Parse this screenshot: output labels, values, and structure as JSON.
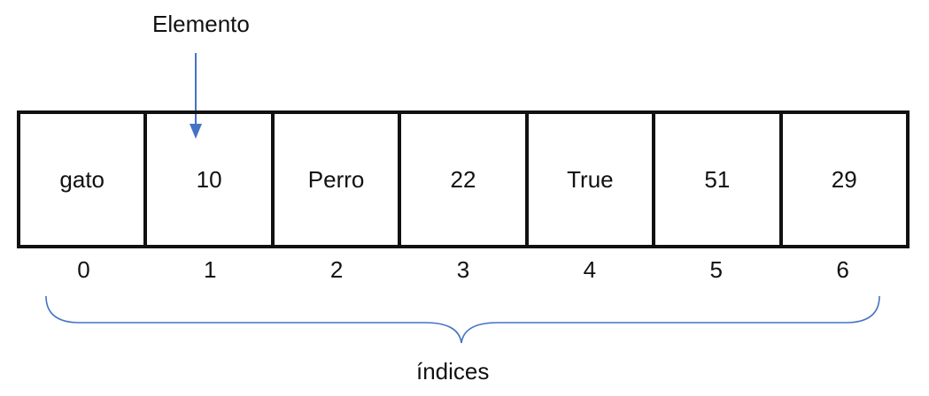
{
  "title": "Elemento",
  "cells": [
    "gato",
    "10",
    "Perro",
    "22",
    "True",
    "51",
    "29"
  ],
  "indices": [
    "0",
    "1",
    "2",
    "3",
    "4",
    "5",
    "6"
  ],
  "footer": "índices",
  "colors": {
    "arrow": "#4472c4",
    "brace": "#4472c4",
    "border": "#111111"
  },
  "pointer_target_index": 1
}
